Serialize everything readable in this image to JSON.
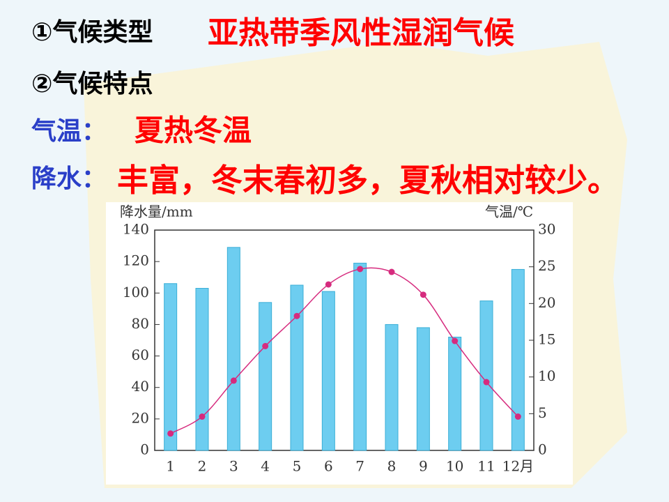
{
  "lines": {
    "type_label": "①气候类型",
    "type_value": "亚热带季风性湿润气候",
    "features_label": "②气候特点",
    "temp_label": "气温：",
    "temp_value": "夏热冬温",
    "precip_label": "降水：",
    "precip_value": "丰富，冬末春初多，夏秋相对较少。"
  },
  "chart_data": {
    "type": "bar_line",
    "ylabel": "降水量/mm",
    "y2label": "气温/℃",
    "categories": [
      "1",
      "2",
      "3",
      "4",
      "5",
      "6",
      "7",
      "8",
      "9",
      "10",
      "11",
      "12月"
    ],
    "series": [
      {
        "type": "bar",
        "color": "#6dcdf0",
        "values": [
          106,
          103,
          129,
          94,
          105,
          101,
          119,
          80,
          78,
          72,
          95,
          115
        ]
      },
      {
        "type": "line",
        "color": "#d62b7e",
        "axis": "y2",
        "values": [
          2.3,
          4.6,
          9.5,
          14.2,
          18.3,
          22.6,
          24.7,
          24.3,
          21.2,
          14.9,
          9.3,
          4.6
        ]
      }
    ],
    "ylim": [
      0,
      140
    ],
    "yticks": [
      0,
      20,
      40,
      60,
      80,
      100,
      120,
      140
    ],
    "y2lim": [
      0,
      30
    ],
    "y2ticks": [
      0,
      5,
      10,
      15,
      20,
      25,
      30
    ]
  }
}
